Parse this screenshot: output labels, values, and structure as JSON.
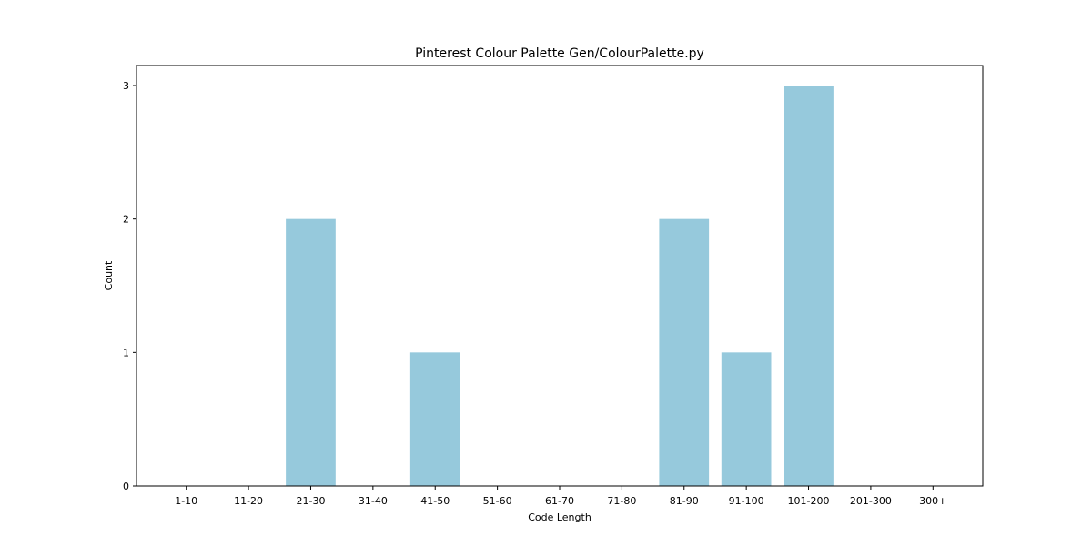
{
  "chart_data": {
    "type": "bar",
    "title": "Pinterest Colour Palette Gen/ColourPalette.py",
    "xlabel": "Code Length",
    "ylabel": "Count",
    "categories": [
      "1-10",
      "11-20",
      "21-30",
      "31-40",
      "41-50",
      "51-60",
      "61-70",
      "71-80",
      "81-90",
      "91-100",
      "101-200",
      "201-300",
      "300+"
    ],
    "values": [
      0,
      0,
      2,
      0,
      1,
      0,
      0,
      0,
      2,
      1,
      3,
      0,
      0
    ],
    "ylim": [
      0,
      3.15
    ],
    "yticks": [
      0,
      1,
      2,
      3
    ],
    "bar_color": "#96c9dc",
    "grid": false,
    "legend": "none"
  }
}
